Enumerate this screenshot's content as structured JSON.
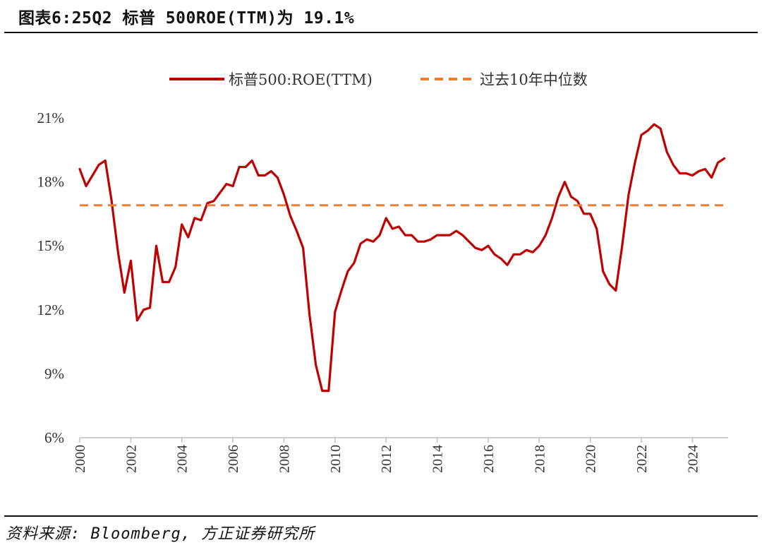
{
  "header": {
    "title": "图表6:25Q2 标普 500ROE(TTM)为 19.1%"
  },
  "footer": {
    "source": "资料来源: Bloomberg, 方正证券研究所"
  },
  "colors": {
    "series": "#c00000",
    "median": "#ed7d31",
    "axis": "#bfbfbf"
  },
  "chart_data": {
    "type": "line",
    "title": "",
    "xlabel": "",
    "ylabel": "",
    "ylim": [
      6,
      21
    ],
    "xlim": [
      2000,
      2025.4
    ],
    "yticks": [
      6,
      9,
      12,
      15,
      18,
      21
    ],
    "ytick_labels": [
      "6%",
      "9%",
      "12%",
      "15%",
      "18%",
      "21%"
    ],
    "xticks": [
      2000,
      2002,
      2004,
      2006,
      2008,
      2010,
      2012,
      2014,
      2016,
      2018,
      2020,
      2022,
      2024
    ],
    "xtick_labels": [
      "2000",
      "2002",
      "2004",
      "2006",
      "2008",
      "2010",
      "2012",
      "2014",
      "2016",
      "2018",
      "2020",
      "2022",
      "2024"
    ],
    "grid": false,
    "legend": "top",
    "series": [
      {
        "name": "标普500:ROE(TTM)",
        "style": "solid",
        "color": "#c00000",
        "x": [
          2000.0,
          2000.25,
          2000.5,
          2000.75,
          2001.0,
          2001.25,
          2001.5,
          2001.75,
          2002.0,
          2002.25,
          2002.5,
          2002.75,
          2003.0,
          2003.25,
          2003.5,
          2003.75,
          2004.0,
          2004.25,
          2004.5,
          2004.75,
          2005.0,
          2005.25,
          2005.5,
          2005.75,
          2006.0,
          2006.25,
          2006.5,
          2006.75,
          2007.0,
          2007.25,
          2007.5,
          2007.75,
          2008.0,
          2008.25,
          2008.5,
          2008.75,
          2009.0,
          2009.25,
          2009.5,
          2009.75,
          2010.0,
          2010.25,
          2010.5,
          2010.75,
          2011.0,
          2011.25,
          2011.5,
          2011.75,
          2012.0,
          2012.25,
          2012.5,
          2012.75,
          2013.0,
          2013.25,
          2013.5,
          2013.75,
          2014.0,
          2014.25,
          2014.5,
          2014.75,
          2015.0,
          2015.25,
          2015.5,
          2015.75,
          2016.0,
          2016.25,
          2016.5,
          2016.75,
          2017.0,
          2017.25,
          2017.5,
          2017.75,
          2018.0,
          2018.25,
          2018.5,
          2018.75,
          2019.0,
          2019.25,
          2019.5,
          2019.75,
          2020.0,
          2020.25,
          2020.5,
          2020.75,
          2021.0,
          2021.25,
          2021.5,
          2021.75,
          2022.0,
          2022.25,
          2022.5,
          2022.75,
          2023.0,
          2023.25,
          2023.5,
          2023.75,
          2024.0,
          2024.25,
          2024.5,
          2024.75,
          2025.0,
          2025.25
        ],
        "values": [
          18.6,
          17.8,
          18.3,
          18.8,
          19.0,
          17.1,
          14.7,
          12.8,
          14.3,
          11.5,
          12.0,
          12.1,
          15.0,
          13.3,
          13.3,
          14.0,
          16.0,
          15.4,
          16.3,
          16.2,
          17.0,
          17.1,
          17.5,
          17.9,
          17.8,
          18.7,
          18.7,
          19.0,
          18.3,
          18.3,
          18.5,
          18.2,
          17.4,
          16.4,
          15.7,
          14.9,
          11.8,
          9.4,
          8.2,
          8.2,
          11.9,
          12.9,
          13.8,
          14.2,
          15.1,
          15.3,
          15.2,
          15.5,
          16.3,
          15.8,
          15.9,
          15.5,
          15.5,
          15.2,
          15.2,
          15.3,
          15.5,
          15.5,
          15.5,
          15.7,
          15.5,
          15.2,
          14.9,
          14.8,
          15.0,
          14.6,
          14.4,
          14.1,
          14.6,
          14.6,
          14.8,
          14.7,
          15.0,
          15.5,
          16.3,
          17.3,
          18.0,
          17.3,
          17.1,
          16.5,
          16.5,
          15.8,
          13.8,
          13.2,
          12.9,
          15.0,
          17.4,
          18.9,
          20.2,
          20.4,
          20.7,
          20.5,
          19.4,
          18.8,
          18.4,
          18.4,
          18.3,
          18.5,
          18.6,
          18.2,
          18.9,
          19.1
        ]
      },
      {
        "name": "过去10年中位数",
        "style": "dashed",
        "color": "#ed7d31",
        "x": [
          2000.0,
          2025.4
        ],
        "values": [
          16.9,
          16.9
        ]
      }
    ]
  }
}
